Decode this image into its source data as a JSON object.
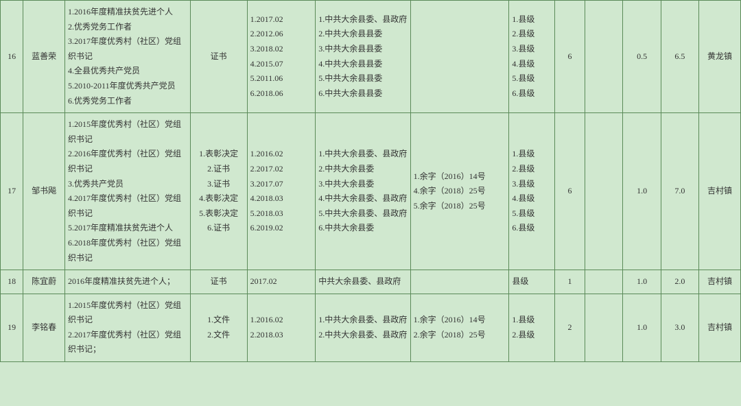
{
  "rows": [
    {
      "idx": "16",
      "name": "蓝善荣",
      "honors": "1.2016年度精准扶贫先进个人\n2.优秀党务工作者\n3.2017年度优秀村（社区）党组织书记\n4.全县优秀共产党员\n5.2010-2011年度优秀共产党员\n6.优秀党务工作者",
      "cert": "证书",
      "dates": "1.2017.02\n2.2012.06\n3.2018.02\n4.2015.07\n5.2011.06\n6.2018.06",
      "org": "1.中共大余县委、县政府\n2.中共大余县县委\n3.中共大余县县委\n4.中共大余县县委\n5.中共大余县县委\n6.中共大余县县委",
      "docno": "",
      "level": "1.县级\n2.县级\n3.县级\n4.县级\n5.县级\n6.县级",
      "n1": "6",
      "gap": "",
      "n2": "0.5",
      "n3": "6.5",
      "town": "黄龙镇"
    },
    {
      "idx": "17",
      "name": "邹书飚",
      "honors": "1.2015年度优秀村（社区）党组织书记\n2.2016年度优秀村（社区）党组织书记\n3.优秀共产党员\n4.2017年度优秀村（社区）党组织书记\n5.2017年度精准扶贫先进个人\n6.2018年度优秀村（社区）党组织书记",
      "cert": "1.表彰决定\n2.证书\n3.证书\n4.表彰决定\n5.表彰决定\n6.证书",
      "dates": "1.2016.02\n2.2017.02\n3.2017.07\n4.2018.03\n5.2018.03\n6.2019.02",
      "org": "1.中共大余县委、县政府\n2.中共大余县委\n3.中共大余县委\n4.中共大余县委、县政府\n5.中共大余县委、县政府\n6.中共大余县委",
      "docno": "1.余字（2016）14号\n4.余字（2018）25号\n5.余字（2018）25号",
      "level": "1.县级\n2.县级\n3.县级\n4.县级\n5.县级\n6.县级",
      "n1": "6",
      "gap": "",
      "n2": "1.0",
      "n3": "7.0",
      "town": "吉村镇"
    },
    {
      "idx": "18",
      "name": "陈宜蔚",
      "honors": "2016年度精准扶贫先进个人；",
      "cert": "证书",
      "dates": "2017.02",
      "org": "中共大余县委、县政府",
      "docno": "",
      "level": "县级",
      "n1": "1",
      "gap": "",
      "n2": "1.0",
      "n3": "2.0",
      "town": "吉村镇"
    },
    {
      "idx": "19",
      "name": "李铭春",
      "honors": "1.2015年度优秀村（社区）党组织书记\n2.2017年度优秀村（社区）党组织书记；",
      "cert": "1.文件\n2.文件",
      "dates": "1.2016.02\n2.2018.03",
      "org": "1.中共大余县委、县政府\n2.中共大余县委、县政府",
      "docno": "1.余字（2016）14号\n2.余字（2018）25号",
      "level": "1.县级\n2.县级",
      "n1": "2",
      "gap": "",
      "n2": "1.0",
      "n3": "3.0",
      "town": "吉村镇"
    }
  ]
}
